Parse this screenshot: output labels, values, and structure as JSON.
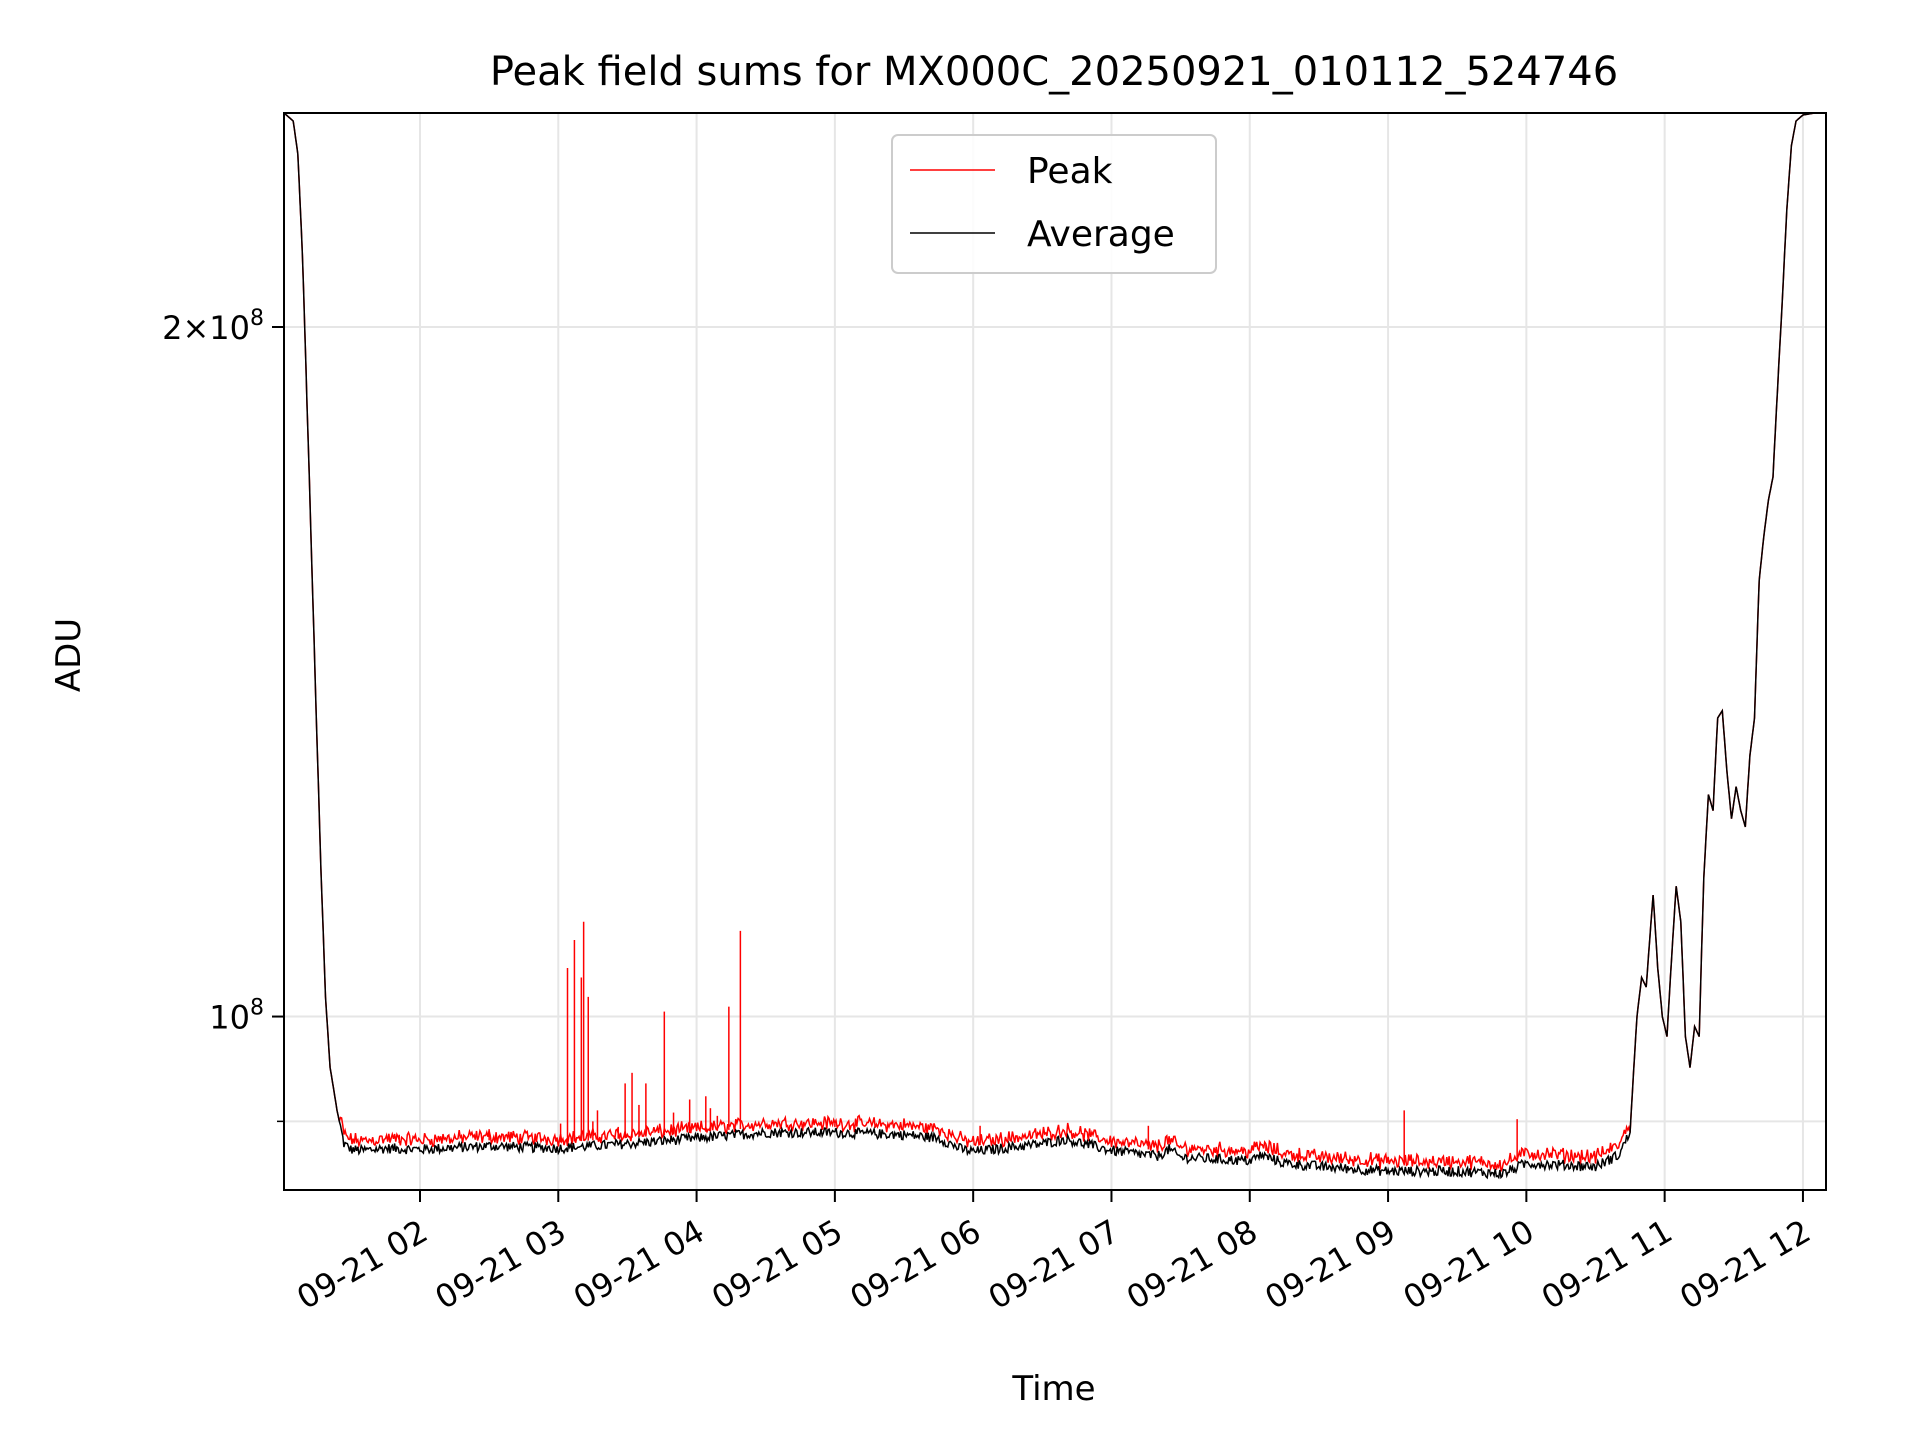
{
  "chart_data": {
    "type": "line",
    "title": "Peak field sums for MX000C_20250921_010112_524746",
    "xlabel": "Time",
    "ylabel": "ADU",
    "yscale": "log",
    "grid": true,
    "legend_position": "top-center",
    "x_range": [
      "2025-09-21 01:01",
      "2025-09-21 12:10"
    ],
    "ylim": [
      84000000,
      248000000
    ],
    "x_ticks": [
      {
        "time": "2025-09-21 02:00",
        "label": "09-21 02"
      },
      {
        "time": "2025-09-21 03:00",
        "label": "09-21 03"
      },
      {
        "time": "2025-09-21 04:00",
        "label": "09-21 04"
      },
      {
        "time": "2025-09-21 05:00",
        "label": "09-21 05"
      },
      {
        "time": "2025-09-21 06:00",
        "label": "09-21 06"
      },
      {
        "time": "2025-09-21 07:00",
        "label": "09-21 07"
      },
      {
        "time": "2025-09-21 08:00",
        "label": "09-21 08"
      },
      {
        "time": "2025-09-21 09:00",
        "label": "09-21 09"
      },
      {
        "time": "2025-09-21 10:00",
        "label": "09-21 10"
      },
      {
        "time": "2025-09-21 11:00",
        "label": "09-21 11"
      },
      {
        "time": "2025-09-21 12:00",
        "label": "09-21 12"
      }
    ],
    "y_ticks": [
      {
        "value": 100000000,
        "mantissa": "",
        "exponent": "8"
      },
      {
        "value": 200000000,
        "mantissa": "2",
        "exponent": "8"
      }
    ],
    "y_minor_gridlines": [
      90000000
    ],
    "series": [
      {
        "name": "Average",
        "color": "#000000",
        "points": [
          [
            "2025-09-21 01:01",
            248000000
          ],
          [
            "2025-09-21 01:05",
            246000000
          ],
          [
            "2025-09-21 01:07",
            238000000
          ],
          [
            "2025-09-21 01:09",
            215000000
          ],
          [
            "2025-09-21 01:11",
            185000000
          ],
          [
            "2025-09-21 01:13",
            158000000
          ],
          [
            "2025-09-21 01:15",
            135000000
          ],
          [
            "2025-09-21 01:17",
            116000000
          ],
          [
            "2025-09-21 01:19",
            102000000
          ],
          [
            "2025-09-21 01:21",
            95000000
          ],
          [
            "2025-09-21 01:24",
            91000000
          ],
          [
            "2025-09-21 01:27",
            88000000
          ],
          [
            "2025-09-21 01:30",
            87500000
          ],
          [
            "2025-09-21 01:35",
            87400000
          ],
          [
            "2025-09-21 01:45",
            87600000
          ],
          [
            "2025-09-21 02:00",
            87500000
          ],
          [
            "2025-09-21 02:30",
            87800000
          ],
          [
            "2025-09-21 03:00",
            87600000
          ],
          [
            "2025-09-21 03:30",
            88000000
          ],
          [
            "2025-09-21 04:00",
            88500000
          ],
          [
            "2025-09-21 04:30",
            89000000
          ],
          [
            "2025-09-21 05:00",
            89000000
          ],
          [
            "2025-09-21 05:30",
            88800000
          ],
          [
            "2025-09-21 05:45",
            88500000
          ],
          [
            "2025-09-21 05:55",
            87500000
          ],
          [
            "2025-09-21 06:00",
            87300000
          ],
          [
            "2025-09-21 06:30",
            88000000
          ],
          [
            "2025-09-21 06:40",
            88400000
          ],
          [
            "2025-09-21 07:00",
            87400000
          ],
          [
            "2025-09-21 07:20",
            86900000
          ],
          [
            "2025-09-21 07:25",
            87500000
          ],
          [
            "2025-09-21 07:30",
            86800000
          ],
          [
            "2025-09-21 08:00",
            86500000
          ],
          [
            "2025-09-21 08:05",
            87000000
          ],
          [
            "2025-09-21 08:15",
            86300000
          ],
          [
            "2025-09-21 08:30",
            86000000
          ],
          [
            "2025-09-21 09:00",
            85600000
          ],
          [
            "2025-09-21 09:30",
            85600000
          ],
          [
            "2025-09-21 09:50",
            85400000
          ],
          [
            "2025-09-21 10:00",
            86300000
          ],
          [
            "2025-09-21 10:30",
            86000000
          ],
          [
            "2025-09-21 10:40",
            87000000
          ],
          [
            "2025-09-21 10:45",
            89000000
          ],
          [
            "2025-09-21 10:48",
            100000000
          ],
          [
            "2025-09-21 10:50",
            104000000
          ],
          [
            "2025-09-21 10:52",
            103000000
          ],
          [
            "2025-09-21 10:55",
            113000000
          ],
          [
            "2025-09-21 10:57",
            105000000
          ],
          [
            "2025-09-21 10:59",
            100000000
          ],
          [
            "2025-09-21 11:01",
            98000000
          ],
          [
            "2025-09-21 11:03",
            106000000
          ],
          [
            "2025-09-21 11:05",
            114000000
          ],
          [
            "2025-09-21 11:07",
            110000000
          ],
          [
            "2025-09-21 11:09",
            98000000
          ],
          [
            "2025-09-21 11:11",
            95000000
          ],
          [
            "2025-09-21 11:13",
            99000000
          ],
          [
            "2025-09-21 11:15",
            98000000
          ],
          [
            "2025-09-21 11:17",
            115000000
          ],
          [
            "2025-09-21 11:19",
            125000000
          ],
          [
            "2025-09-21 11:21",
            123000000
          ],
          [
            "2025-09-21 11:23",
            135000000
          ],
          [
            "2025-09-21 11:25",
            136000000
          ],
          [
            "2025-09-21 11:27",
            128000000
          ],
          [
            "2025-09-21 11:29",
            122000000
          ],
          [
            "2025-09-21 11:31",
            126000000
          ],
          [
            "2025-09-21 11:33",
            123000000
          ],
          [
            "2025-09-21 11:35",
            121000000
          ],
          [
            "2025-09-21 11:37",
            130000000
          ],
          [
            "2025-09-21 11:39",
            135000000
          ],
          [
            "2025-09-21 11:41",
            155000000
          ],
          [
            "2025-09-21 11:43",
            162000000
          ],
          [
            "2025-09-21 11:45",
            168000000
          ],
          [
            "2025-09-21 11:47",
            172000000
          ],
          [
            "2025-09-21 11:49",
            188000000
          ],
          [
            "2025-09-21 11:51",
            205000000
          ],
          [
            "2025-09-21 11:53",
            225000000
          ],
          [
            "2025-09-21 11:55",
            240000000
          ],
          [
            "2025-09-21 11:57",
            246000000
          ],
          [
            "2025-09-21 12:00",
            247500000
          ],
          [
            "2025-09-21 12:05",
            248000000
          ],
          [
            "2025-09-21 12:10",
            248000000
          ]
        ]
      },
      {
        "name": "Peak",
        "color": "#ff0000",
        "baseline_offset": 500000,
        "spikes": [
          [
            "2025-09-21 01:51",
            88800000
          ],
          [
            "2025-09-21 02:30",
            89300000
          ],
          [
            "2025-09-21 03:01",
            89800000
          ],
          [
            "2025-09-21 03:04",
            105000000
          ],
          [
            "2025-09-21 03:07",
            108000000
          ],
          [
            "2025-09-21 03:10",
            104000000
          ],
          [
            "2025-09-21 03:11",
            110000000
          ],
          [
            "2025-09-21 03:13",
            102000000
          ],
          [
            "2025-09-21 03:15",
            90000000
          ],
          [
            "2025-09-21 03:17",
            91000000
          ],
          [
            "2025-09-21 03:26",
            89500000
          ],
          [
            "2025-09-21 03:29",
            93500000
          ],
          [
            "2025-09-21 03:32",
            94500000
          ],
          [
            "2025-09-21 03:35",
            91500000
          ],
          [
            "2025-09-21 03:38",
            93500000
          ],
          [
            "2025-09-21 03:46",
            100500000
          ],
          [
            "2025-09-21 03:50",
            90800000
          ],
          [
            "2025-09-21 03:57",
            92000000
          ],
          [
            "2025-09-21 04:04",
            92300000
          ],
          [
            "2025-09-21 04:06",
            91200000
          ],
          [
            "2025-09-21 04:09",
            90500000
          ],
          [
            "2025-09-21 04:14",
            101000000
          ],
          [
            "2025-09-21 04:19",
            109000000
          ],
          [
            "2025-09-21 05:00",
            89800000
          ],
          [
            "2025-09-21 06:03",
            89600000
          ],
          [
            "2025-09-21 07:16",
            89600000
          ],
          [
            "2025-09-21 08:07",
            87900000
          ],
          [
            "2025-09-21 09:07",
            91000000
          ],
          [
            "2025-09-21 09:56",
            90200000
          ]
        ]
      }
    ]
  }
}
